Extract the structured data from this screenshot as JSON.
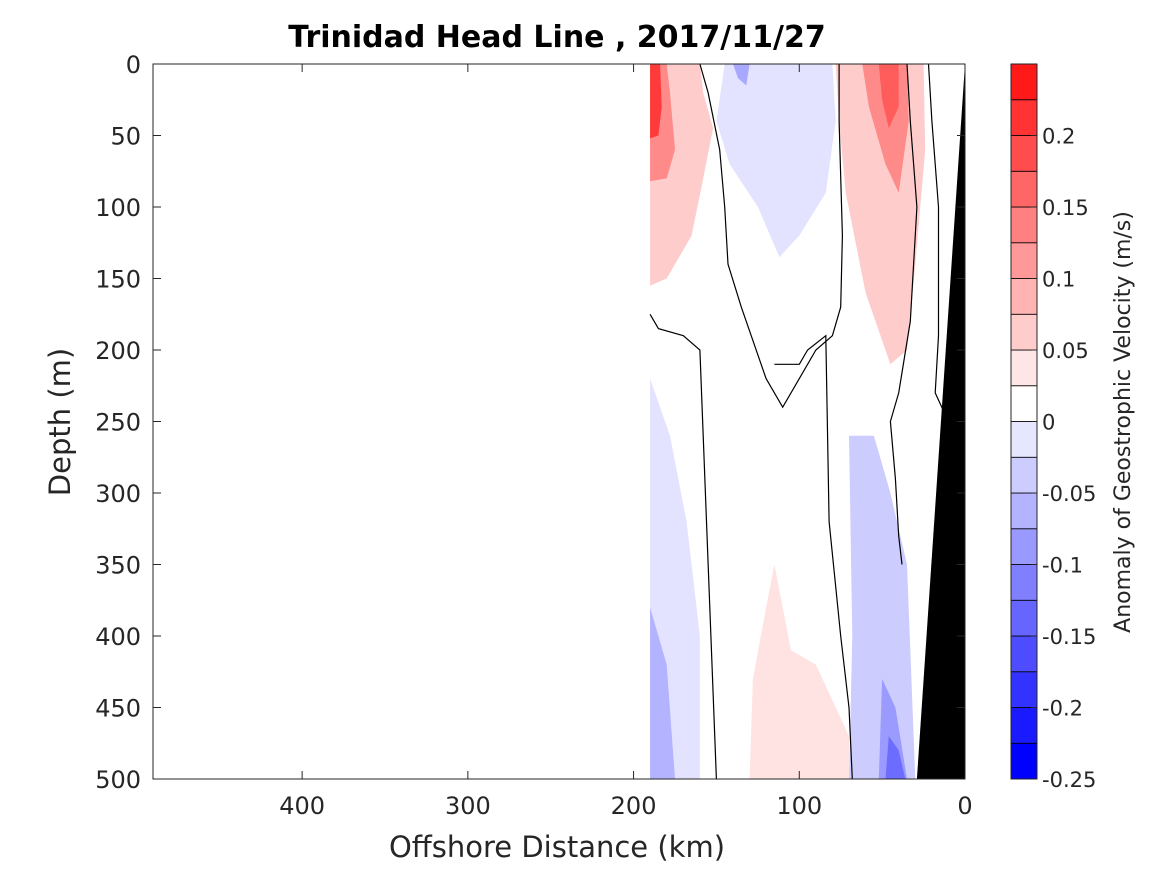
{
  "chart_data": {
    "type": "heatmap",
    "subtype": "filled-contour",
    "title": "Trinidad Head Line , 2017/11/27",
    "xlabel": "Offshore Distance (km)",
    "ylabel": "Depth (m)",
    "colorbar_label": "Anomaly of Geostrophic Velocity (m/s)",
    "x_reversed": true,
    "y_reversed": true,
    "xlim": [
      490,
      0
    ],
    "ylim": [
      0,
      500
    ],
    "x_ticks": [
      "400",
      "300",
      "200",
      "100",
      "0"
    ],
    "x_tick_values": [
      400,
      300,
      200,
      100,
      0
    ],
    "y_ticks": [
      "0",
      "50",
      "100",
      "150",
      "200",
      "250",
      "300",
      "350",
      "400",
      "450",
      "500"
    ],
    "y_tick_values": [
      0,
      50,
      100,
      150,
      200,
      250,
      300,
      350,
      400,
      450,
      500
    ],
    "colorbar": {
      "range": [
        -0.25,
        0.25
      ],
      "levels": [
        -0.25,
        -0.225,
        -0.2,
        -0.175,
        -0.15,
        -0.125,
        -0.1,
        -0.075,
        -0.05,
        -0.025,
        0,
        0.025,
        0.05,
        0.075,
        0.1,
        0.125,
        0.15,
        0.175,
        0.2,
        0.225,
        0.25
      ],
      "colors": [
        "#0000ff",
        "#1a1aff",
        "#3333ff",
        "#4d4dff",
        "#6666ff",
        "#8080ff",
        "#9999ff",
        "#b3b3ff",
        "#ccccff",
        "#e6e6ff",
        "#ffffff",
        "#ffffff",
        "#ffe6e6",
        "#ffcccc",
        "#ffb3b3",
        "#ff9999",
        "#ff8080",
        "#ff6666",
        "#ff4d4d",
        "#ff3333",
        "#ff1a1a",
        "#ff0000"
      ],
      "tick_labels": [
        "0.2",
        "0.15",
        "0.1",
        "0.05",
        "0",
        "-0.05",
        "-0.1",
        "-0.15",
        "-0.2",
        "-0.25"
      ],
      "tick_values": [
        0.2,
        0.15,
        0.1,
        0.05,
        0,
        -0.05,
        -0.1,
        -0.15,
        -0.2,
        -0.25
      ]
    },
    "data_extent_km": [
      190,
      0
    ],
    "seafloor": {
      "color": "#000000",
      "points": [
        [
          0,
          0
        ],
        [
          0,
          500
        ],
        [
          29,
          500
        ]
      ]
    },
    "regions": [
      {
        "name": "nearshore-north-jet-upper",
        "sign": "positive",
        "points": [
          [
            190,
            0
          ],
          [
            160,
            0
          ],
          [
            158,
            20
          ],
          [
            152,
            45
          ],
          [
            158,
            80
          ],
          [
            165,
            120
          ],
          [
            180,
            150
          ],
          [
            190,
            155
          ]
        ]
      },
      {
        "name": "offshore-core-red",
        "sign": "positive",
        "points": [
          [
            190,
            0
          ],
          [
            180,
            0
          ],
          [
            178,
            20
          ],
          [
            175,
            60
          ],
          [
            180,
            80
          ],
          [
            190,
            82
          ]
        ]
      },
      {
        "name": "southward-upper-blue",
        "sign": "negative",
        "points": [
          [
            145,
            0
          ],
          [
            80,
            0
          ],
          [
            78,
            40
          ],
          [
            84,
            90
          ],
          [
            100,
            120
          ],
          [
            112,
            135
          ],
          [
            125,
            100
          ],
          [
            142,
            70
          ],
          [
            150,
            40
          ]
        ]
      },
      {
        "name": "coastal-jet-red",
        "sign": "positive",
        "points": [
          [
            78,
            0
          ],
          [
            25,
            0
          ],
          [
            24,
            60
          ],
          [
            30,
            140
          ],
          [
            35,
            200
          ],
          [
            45,
            210
          ],
          [
            60,
            160
          ],
          [
            72,
            90
          ],
          [
            76,
            40
          ]
        ]
      },
      {
        "name": "coastal-jet-core",
        "sign": "positive",
        "points": [
          [
            62,
            0
          ],
          [
            35,
            0
          ],
          [
            34,
            40
          ],
          [
            40,
            90
          ],
          [
            48,
            70
          ],
          [
            58,
            30
          ]
        ]
      },
      {
        "name": "deep-west-blue",
        "sign": "negative",
        "points": [
          [
            190,
            220
          ],
          [
            178,
            260
          ],
          [
            168,
            320
          ],
          [
            160,
            400
          ],
          [
            160,
            500
          ],
          [
            190,
            500
          ]
        ]
      },
      {
        "name": "deep-west-blue-core",
        "sign": "negative",
        "points": [
          [
            190,
            380
          ],
          [
            180,
            420
          ],
          [
            175,
            500
          ],
          [
            190,
            500
          ]
        ]
      },
      {
        "name": "deep-middle-red",
        "sign": "positive",
        "points": [
          [
            130,
            500
          ],
          [
            128,
            430
          ],
          [
            120,
            380
          ],
          [
            115,
            350
          ],
          [
            110,
            380
          ],
          [
            105,
            410
          ],
          [
            90,
            420
          ],
          [
            70,
            470
          ],
          [
            70,
            500
          ]
        ]
      },
      {
        "name": "deep-coastal-blue",
        "sign": "negative",
        "points": [
          [
            70,
            260
          ],
          [
            55,
            260
          ],
          [
            45,
            300
          ],
          [
            35,
            350
          ],
          [
            30,
            500
          ],
          [
            70,
            500
          ],
          [
            68,
            400
          ]
        ]
      },
      {
        "name": "deep-coastal-blue-core",
        "sign": "negative",
        "points": [
          [
            50,
            430
          ],
          [
            42,
            450
          ],
          [
            35,
            500
          ],
          [
            52,
            500
          ]
        ]
      }
    ],
    "zero_contours": [
      [
        [
          160,
          0
        ],
        [
          155,
          20
        ],
        [
          148,
          60
        ],
        [
          145,
          100
        ],
        [
          143,
          140
        ],
        [
          135,
          170
        ],
        [
          120,
          220
        ],
        [
          110,
          240
        ],
        [
          90,
          200
        ],
        [
          80,
          190
        ],
        [
          75,
          170
        ],
        [
          74,
          120
        ],
        [
          76,
          40
        ],
        [
          76,
          0
        ]
      ],
      [
        [
          190,
          175
        ],
        [
          185,
          185
        ],
        [
          170,
          190
        ],
        [
          160,
          200
        ],
        [
          150,
          500
        ]
      ],
      [
        [
          115,
          210
        ],
        [
          100,
          210
        ],
        [
          95,
          200
        ],
        [
          84,
          190
        ],
        [
          82,
          320
        ],
        [
          75,
          400
        ],
        [
          70,
          450
        ],
        [
          68,
          500
        ]
      ],
      [
        [
          22,
          0
        ],
        [
          20,
          40
        ],
        [
          16,
          100
        ],
        [
          16,
          190
        ],
        [
          18,
          230
        ],
        [
          10,
          250
        ]
      ],
      [
        [
          35,
          0
        ],
        [
          33,
          40
        ],
        [
          29,
          100
        ],
        [
          33,
          180
        ],
        [
          40,
          230
        ],
        [
          45,
          250
        ],
        [
          42,
          290
        ],
        [
          40,
          330
        ],
        [
          38,
          350
        ]
      ]
    ]
  }
}
